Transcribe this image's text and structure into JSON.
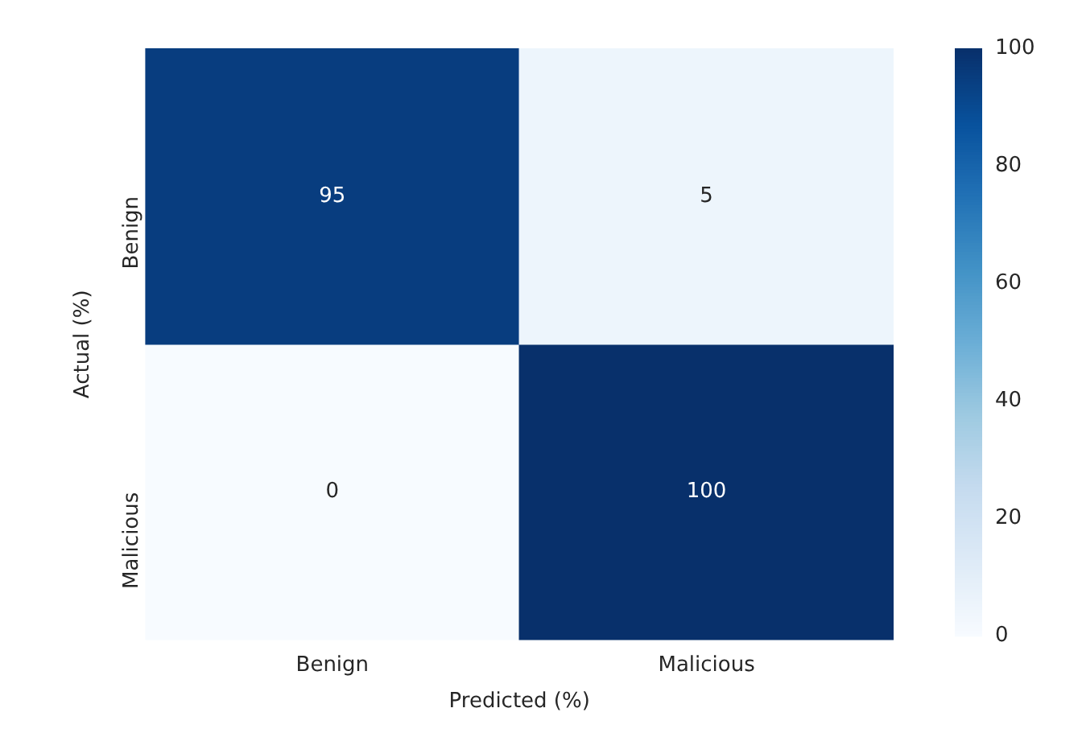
{
  "chart_data": {
    "type": "heatmap",
    "xlabel": "Predicted (%)",
    "ylabel": "Actual (%)",
    "categories": [
      "Benign",
      "Malicious"
    ],
    "y_categories": [
      "Benign",
      "Malicious"
    ],
    "cells": [
      [
        95,
        5
      ],
      [
        0,
        100
      ]
    ],
    "data_labels": true,
    "clim": [
      0,
      100
    ],
    "cticks": [
      0,
      20,
      40,
      60,
      80,
      100
    ]
  }
}
